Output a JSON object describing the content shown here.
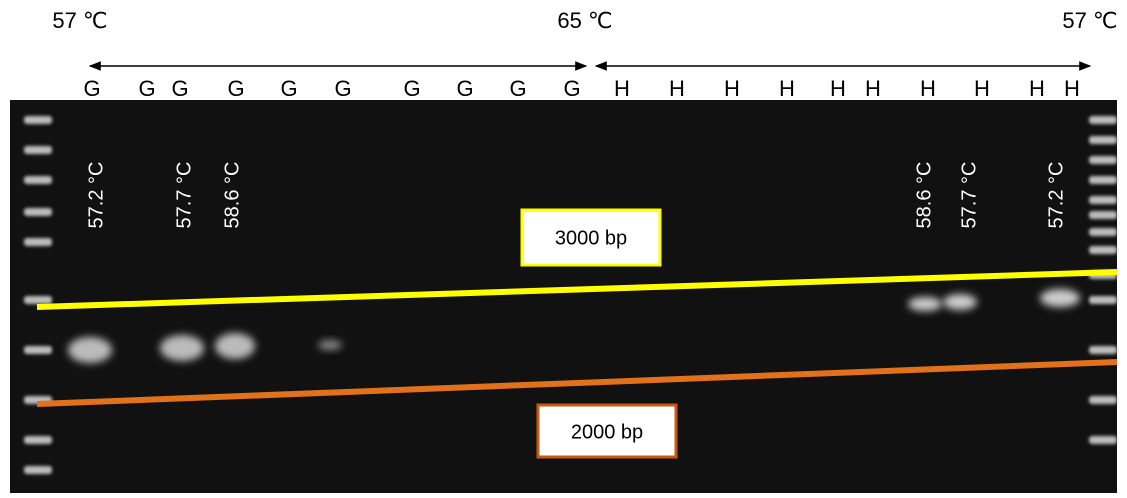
{
  "temperatures": [
    "57 ℃",
    "65 ℃",
    "57 ℃"
  ],
  "lanes": [
    "G",
    "G",
    "G",
    "G",
    "G",
    "G",
    "G",
    "G",
    "G",
    "G",
    "H",
    "H",
    "H",
    "H",
    "H",
    "H",
    "H",
    "H",
    "H",
    "H"
  ],
  "lane_temperatures": [
    "57.2 °C",
    "57.7 °C",
    "58.6 °C",
    "58.6 °C",
    "57.7 °C",
    "57.2 °C"
  ],
  "markers": [
    "3000 bp",
    "2000 bp"
  ]
}
